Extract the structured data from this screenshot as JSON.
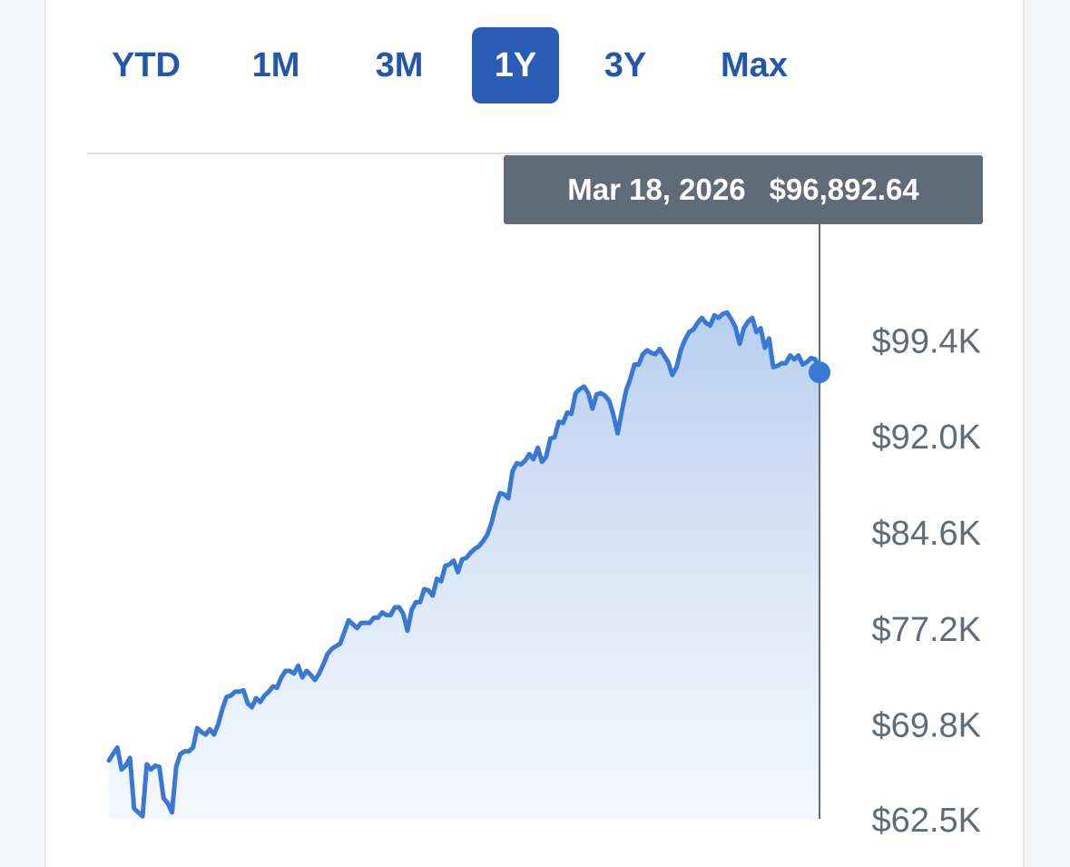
{
  "range_tabs": [
    {
      "label": "YTD",
      "active": false
    },
    {
      "label": "1M",
      "active": false
    },
    {
      "label": "3M",
      "active": false
    },
    {
      "label": "1Y",
      "active": true
    },
    {
      "label": "3Y",
      "active": false
    },
    {
      "label": "Max",
      "active": false
    }
  ],
  "tooltip": {
    "date": "Mar 18, 2026",
    "value": "$96,892.64"
  },
  "colors": {
    "accent": "#2a5cb6",
    "line": "#3a78d6",
    "tooltip_bg": "#5f6b78",
    "axis_text": "#5f6b78"
  },
  "chart_data": {
    "type": "area",
    "title": "",
    "xlabel": "",
    "ylabel": "",
    "ylim": [
      62.5,
      106.0
    ],
    "yunit": "thousands USD",
    "y_ticks": [
      62.5,
      69.8,
      77.2,
      84.6,
      92.0,
      99.4
    ],
    "y_tick_labels": [
      "$62.5K",
      "$69.8K",
      "$77.2K",
      "$84.6K",
      "$92.0K",
      "$99.4K"
    ],
    "x_start": "2025-03-18",
    "x_end": "2026-03-18",
    "grid": false,
    "legend": "none",
    "series": [
      {
        "values": [
          67.0,
          67.5,
          68.0,
          66.3,
          66.6,
          67.2,
          63.3,
          63.0,
          62.7,
          66.7,
          66.3,
          66.6,
          66.5,
          64.1,
          63.7,
          63.0,
          66.5,
          67.5,
          67.7,
          67.7,
          68.0,
          69.5,
          69.2,
          69.0,
          69.4,
          69.0,
          69.8,
          71.0,
          71.9,
          72.0,
          72.3,
          72.3,
          72.4,
          71.4,
          71.1,
          71.8,
          71.5,
          72.0,
          72.3,
          72.7,
          72.6,
          73.4,
          73.9,
          73.9,
          73.7,
          74.3,
          73.4,
          73.9,
          73.6,
          73.2,
          73.7,
          74.4,
          75.2,
          75.6,
          75.8,
          76.0,
          76.9,
          77.8,
          77.5,
          77.2,
          77.6,
          77.6,
          77.6,
          78.0,
          78.0,
          78.4,
          78.2,
          78.2,
          78.8,
          78.8,
          78.3,
          77.0,
          78.6,
          79.2,
          79.2,
          80.2,
          80.1,
          79.7,
          81.0,
          80.8,
          82.0,
          82.1,
          82.4,
          81.5,
          82.5,
          82.6,
          83.0,
          83.3,
          83.5,
          83.9,
          84.4,
          85.3,
          86.6,
          87.6,
          87.5,
          87.2,
          89.3,
          89.9,
          89.8,
          90.1,
          90.6,
          90.2,
          91.1,
          90.0,
          90.4,
          91.8,
          91.9,
          93.1,
          93.0,
          93.8,
          93.7,
          95.3,
          95.6,
          95.8,
          95.3,
          94.1,
          95.2,
          95.3,
          95.1,
          94.7,
          93.6,
          92.2,
          93.9,
          95.5,
          96.4,
          97.5,
          97.5,
          98.3,
          98.6,
          98.4,
          98.3,
          98.7,
          98.2,
          97.7,
          96.7,
          97.3,
          98.6,
          99.4,
          100.0,
          100.2,
          100.7,
          101.1,
          100.7,
          100.5,
          101.3,
          101.1,
          101.4,
          101.5,
          101.0,
          100.4,
          99.1,
          100.3,
          100.8,
          101.1,
          100.0,
          100.3,
          98.8,
          99.5,
          97.3,
          97.4,
          97.6,
          97.6,
          98.2,
          97.9,
          98.2,
          97.5,
          97.7,
          98.0,
          97.9,
          96.9
        ]
      }
    ]
  }
}
